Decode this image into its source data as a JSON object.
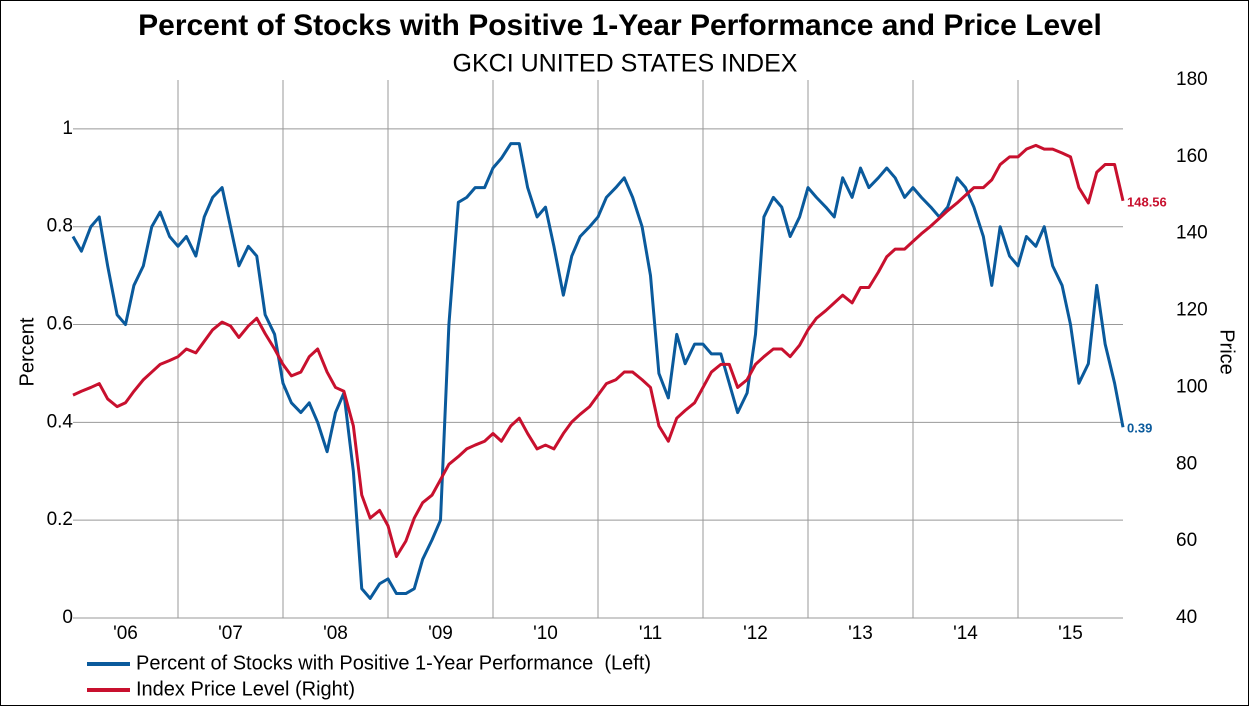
{
  "chart_data": {
    "type": "line",
    "title": "Percent of Stocks with Positive 1-Year Performance and Price Level",
    "subtitle": "GKCI UNITED STATES INDEX",
    "y_label": "Percent",
    "y2_label": "Price",
    "x": [
      2006.0,
      2006.08,
      2006.17,
      2006.25,
      2006.33,
      2006.42,
      2006.5,
      2006.58,
      2006.67,
      2006.75,
      2006.83,
      2006.92,
      2007.0,
      2007.08,
      2007.17,
      2007.25,
      2007.33,
      2007.42,
      2007.5,
      2007.58,
      2007.67,
      2007.75,
      2007.83,
      2007.92,
      2008.0,
      2008.08,
      2008.17,
      2008.25,
      2008.33,
      2008.42,
      2008.5,
      2008.58,
      2008.67,
      2008.75,
      2008.83,
      2008.92,
      2009.0,
      2009.08,
      2009.17,
      2009.25,
      2009.33,
      2009.42,
      2009.5,
      2009.58,
      2009.67,
      2009.75,
      2009.83,
      2009.92,
      2010.0,
      2010.08,
      2010.17,
      2010.25,
      2010.33,
      2010.42,
      2010.5,
      2010.58,
      2010.67,
      2010.75,
      2010.83,
      2010.92,
      2011.0,
      2011.08,
      2011.17,
      2011.25,
      2011.33,
      2011.42,
      2011.5,
      2011.58,
      2011.67,
      2011.75,
      2011.83,
      2011.92,
      2012.0,
      2012.08,
      2012.17,
      2012.25,
      2012.33,
      2012.42,
      2012.5,
      2012.58,
      2012.67,
      2012.75,
      2012.83,
      2012.92,
      2013.0,
      2013.08,
      2013.17,
      2013.25,
      2013.33,
      2013.42,
      2013.5,
      2013.58,
      2013.67,
      2013.75,
      2013.83,
      2013.92,
      2014.0,
      2014.08,
      2014.17,
      2014.25,
      2014.33,
      2014.42,
      2014.5,
      2014.58,
      2014.67,
      2014.75,
      2014.83,
      2014.92,
      2015.0,
      2015.08,
      2015.17,
      2015.25,
      2015.33,
      2015.42,
      2015.5,
      2015.58,
      2015.67,
      2015.75,
      2015.83,
      2015.92,
      2016.0
    ],
    "series": [
      {
        "name": "Percent of Stocks with Positive 1-Year Performance  (Left)",
        "color": "#0a5a9c",
        "axis": "y",
        "last_label": true,
        "values": [
          0.78,
          0.75,
          0.8,
          0.82,
          0.72,
          0.62,
          0.6,
          0.68,
          0.72,
          0.8,
          0.83,
          0.78,
          0.76,
          0.78,
          0.74,
          0.82,
          0.86,
          0.88,
          0.8,
          0.72,
          0.76,
          0.74,
          0.62,
          0.58,
          0.48,
          0.44,
          0.42,
          0.44,
          0.4,
          0.34,
          0.42,
          0.46,
          0.3,
          0.06,
          0.04,
          0.07,
          0.08,
          0.05,
          0.05,
          0.06,
          0.12,
          0.16,
          0.2,
          0.6,
          0.85,
          0.86,
          0.88,
          0.88,
          0.92,
          0.94,
          0.97,
          0.97,
          0.88,
          0.82,
          0.84,
          0.76,
          0.66,
          0.74,
          0.78,
          0.8,
          0.82,
          0.86,
          0.88,
          0.9,
          0.86,
          0.8,
          0.7,
          0.5,
          0.45,
          0.58,
          0.52,
          0.56,
          0.56,
          0.54,
          0.54,
          0.48,
          0.42,
          0.46,
          0.58,
          0.82,
          0.86,
          0.84,
          0.78,
          0.82,
          0.88,
          0.86,
          0.84,
          0.82,
          0.9,
          0.86,
          0.92,
          0.88,
          0.9,
          0.92,
          0.9,
          0.86,
          0.88,
          0.86,
          0.84,
          0.82,
          0.84,
          0.9,
          0.88,
          0.84,
          0.78,
          0.68,
          0.8,
          0.74,
          0.72,
          0.78,
          0.76,
          0.8,
          0.72,
          0.68,
          0.6,
          0.48,
          0.52,
          0.68,
          0.56,
          0.48,
          0.39
        ]
      },
      {
        "name": "Index Price Level (Right)",
        "color": "#c8102e",
        "axis": "y2",
        "last_label": true,
        "values": [
          98,
          99,
          100,
          101,
          97,
          95,
          96,
          99,
          102,
          104,
          106,
          107,
          108,
          110,
          109,
          112,
          115,
          117,
          116,
          113,
          116,
          118,
          114,
          110,
          106,
          103,
          104,
          108,
          110,
          104,
          100,
          99,
          90,
          72,
          66,
          68,
          64,
          56,
          60,
          66,
          70,
          72,
          76,
          80,
          82,
          84,
          85,
          86,
          88,
          86,
          90,
          92,
          88,
          84,
          85,
          84,
          88,
          91,
          93,
          95,
          98,
          101,
          102,
          104,
          104,
          102,
          100,
          90,
          86,
          92,
          94,
          96,
          100,
          104,
          106,
          106,
          100,
          102,
          106,
          108,
          110,
          110,
          108,
          111,
          115,
          118,
          120,
          122,
          124,
          122,
          126,
          126,
          130,
          134,
          136,
          136,
          138,
          140,
          142,
          144,
          146,
          148,
          150,
          152,
          152,
          154,
          158,
          160,
          160,
          162,
          163,
          162,
          162,
          161,
          160,
          152,
          148,
          156,
          158,
          158,
          148.56
        ]
      }
    ],
    "xlim": [
      2006,
      2016
    ],
    "xticks": [
      {
        "value": 2006.5,
        "label": "'06"
      },
      {
        "value": 2007.5,
        "label": "'07"
      },
      {
        "value": 2008.5,
        "label": "'08"
      },
      {
        "value": 2009.5,
        "label": "'09"
      },
      {
        "value": 2010.5,
        "label": "'10"
      },
      {
        "value": 2011.5,
        "label": "'11"
      },
      {
        "value": 2012.5,
        "label": "'12"
      },
      {
        "value": 2013.5,
        "label": "'13"
      },
      {
        "value": 2014.5,
        "label": "'14"
      },
      {
        "value": 2015.5,
        "label": "'15"
      }
    ],
    "xgrid": [
      2007,
      2008,
      2009,
      2010,
      2011,
      2012,
      2013,
      2014,
      2015
    ],
    "ylim": [
      0,
      1.1
    ],
    "yticks": [
      0,
      0.2,
      0.4,
      0.6,
      0.8,
      1
    ],
    "y2lim": [
      40,
      180
    ],
    "y2ticks": [
      40,
      60,
      80,
      100,
      120,
      140,
      160,
      180
    ],
    "grid": true,
    "legend": "bottom"
  }
}
